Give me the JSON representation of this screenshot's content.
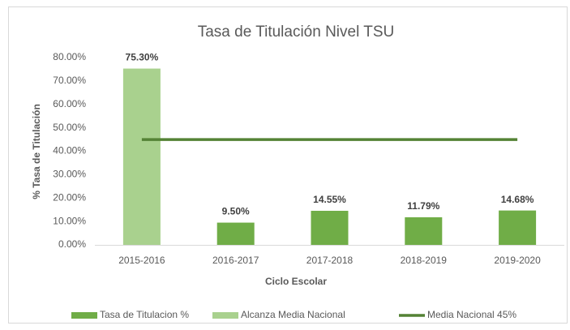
{
  "chart_data": {
    "type": "bar",
    "title": "Tasa de Titulación Nivel TSU",
    "x_label": "Ciclo Escolar",
    "y_label": "% Tasa de Titulación",
    "categories": [
      "2015-2016",
      "2016-2017",
      "2017-2018",
      "2018-2019",
      "2019-2020"
    ],
    "series": [
      {
        "name": "Tasa de Titulacion %",
        "type": "bar",
        "color": "#70ad47",
        "values": [
          null,
          9.5,
          14.55,
          11.79,
          14.68
        ],
        "value_labels": [
          null,
          "9.50%",
          "14.55%",
          "11.79%",
          "14.68%"
        ]
      },
      {
        "name": "Alcanza Media Nacional",
        "type": "bar",
        "color": "#a9d18e",
        "values": [
          75.3,
          null,
          null,
          null,
          null
        ],
        "value_labels": [
          "75.30%",
          null,
          null,
          null,
          null
        ]
      },
      {
        "name": "Media Nacional 45%",
        "type": "line",
        "color": "#548235",
        "values": [
          45,
          45,
          45,
          45,
          45
        ]
      }
    ],
    "ylim": [
      0,
      80
    ],
    "yticks": [
      {
        "value": 0,
        "label": "0.00%"
      },
      {
        "value": 10,
        "label": "10.00%"
      },
      {
        "value": 20,
        "label": "20.00%"
      },
      {
        "value": 30,
        "label": "30.00%"
      },
      {
        "value": 40,
        "label": "40.00%"
      },
      {
        "value": 50,
        "label": "50.00%"
      },
      {
        "value": 60,
        "label": "60.00%"
      },
      {
        "value": 70,
        "label": "70.00%"
      },
      {
        "value": 80,
        "label": "80.00%"
      }
    ],
    "grid": false,
    "legend": "bottom"
  }
}
